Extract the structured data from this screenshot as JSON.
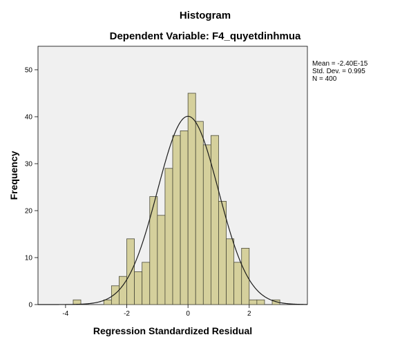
{
  "chart_data": {
    "type": "bar",
    "title": "Histogram",
    "subtitle": "Dependent Variable: F4_quyetdinhmua",
    "xlabel": "Regression Standardized Residual",
    "ylabel": "Frequency",
    "xlim": [
      -4.9,
      3.9
    ],
    "ylim": [
      0,
      55
    ],
    "xticks": [
      -4,
      -2,
      0,
      2
    ],
    "yticks": [
      0,
      10,
      20,
      30,
      40,
      50
    ],
    "bin_width": 0.25,
    "bins": [
      {
        "x0": -3.75,
        "count": 1
      },
      {
        "x0": -2.75,
        "count": 1
      },
      {
        "x0": -2.5,
        "count": 4
      },
      {
        "x0": -2.25,
        "count": 6
      },
      {
        "x0": -2.0,
        "count": 14
      },
      {
        "x0": -1.75,
        "count": 7
      },
      {
        "x0": -1.5,
        "count": 9
      },
      {
        "x0": -1.25,
        "count": 23
      },
      {
        "x0": -1.0,
        "count": 19
      },
      {
        "x0": -0.75,
        "count": 29
      },
      {
        "x0": -0.5,
        "count": 36
      },
      {
        "x0": -0.25,
        "count": 37
      },
      {
        "x0": 0.0,
        "count": 45
      },
      {
        "x0": 0.25,
        "count": 39
      },
      {
        "x0": 0.5,
        "count": 34
      },
      {
        "x0": 0.75,
        "count": 36
      },
      {
        "x0": 1.0,
        "count": 22
      },
      {
        "x0": 1.25,
        "count": 14
      },
      {
        "x0": 1.5,
        "count": 9
      },
      {
        "x0": 1.75,
        "count": 12
      },
      {
        "x0": 2.0,
        "count": 1
      },
      {
        "x0": 2.25,
        "count": 1
      },
      {
        "x0": 2.75,
        "count": 1
      }
    ],
    "normal_curve": {
      "mean": -2.4e-15,
      "sd": 0.995,
      "n": 400
    },
    "stats": {
      "mean": "Mean = -2.40E-15",
      "std_dev": "Std. Dev. = 0.995",
      "n": "N = 400"
    },
    "grid": false,
    "colors": {
      "bar_fill": "#d5d09c",
      "bar_stroke": "#4a4a3a",
      "plot_bg": "#f0f0f0",
      "curve": "#1a1a1a"
    }
  }
}
